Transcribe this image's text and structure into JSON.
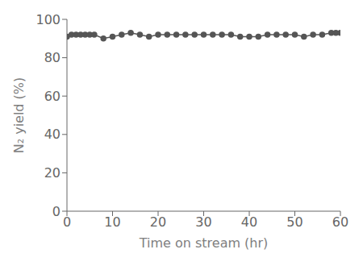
{
  "chart_data": {
    "type": "line",
    "xlabel": "Time on stream (hr)",
    "ylabel": "N₂ yield (%)",
    "x": [
      0,
      1,
      2,
      3,
      4,
      5,
      6,
      8,
      10,
      12,
      14,
      16,
      18,
      20,
      22,
      24,
      26,
      28,
      30,
      32,
      34,
      36,
      38,
      40,
      42,
      44,
      46,
      48,
      50,
      52,
      54,
      56,
      58,
      59,
      60
    ],
    "values": [
      91,
      92,
      92,
      92,
      92,
      92,
      92,
      90,
      91,
      92,
      93,
      92,
      91,
      92,
      92,
      92,
      92,
      92,
      92,
      92,
      92,
      92,
      91,
      91,
      91,
      92,
      92,
      92,
      92,
      91,
      92,
      92,
      93,
      93,
      93
    ],
    "xlim": [
      0,
      60
    ],
    "ylim": [
      0,
      100
    ],
    "xticks": [
      0,
      10,
      20,
      30,
      40,
      50,
      60
    ],
    "yticks": [
      0,
      20,
      40,
      60,
      80,
      100
    ],
    "color": "#555555",
    "marker": "circle",
    "grid": false
  }
}
